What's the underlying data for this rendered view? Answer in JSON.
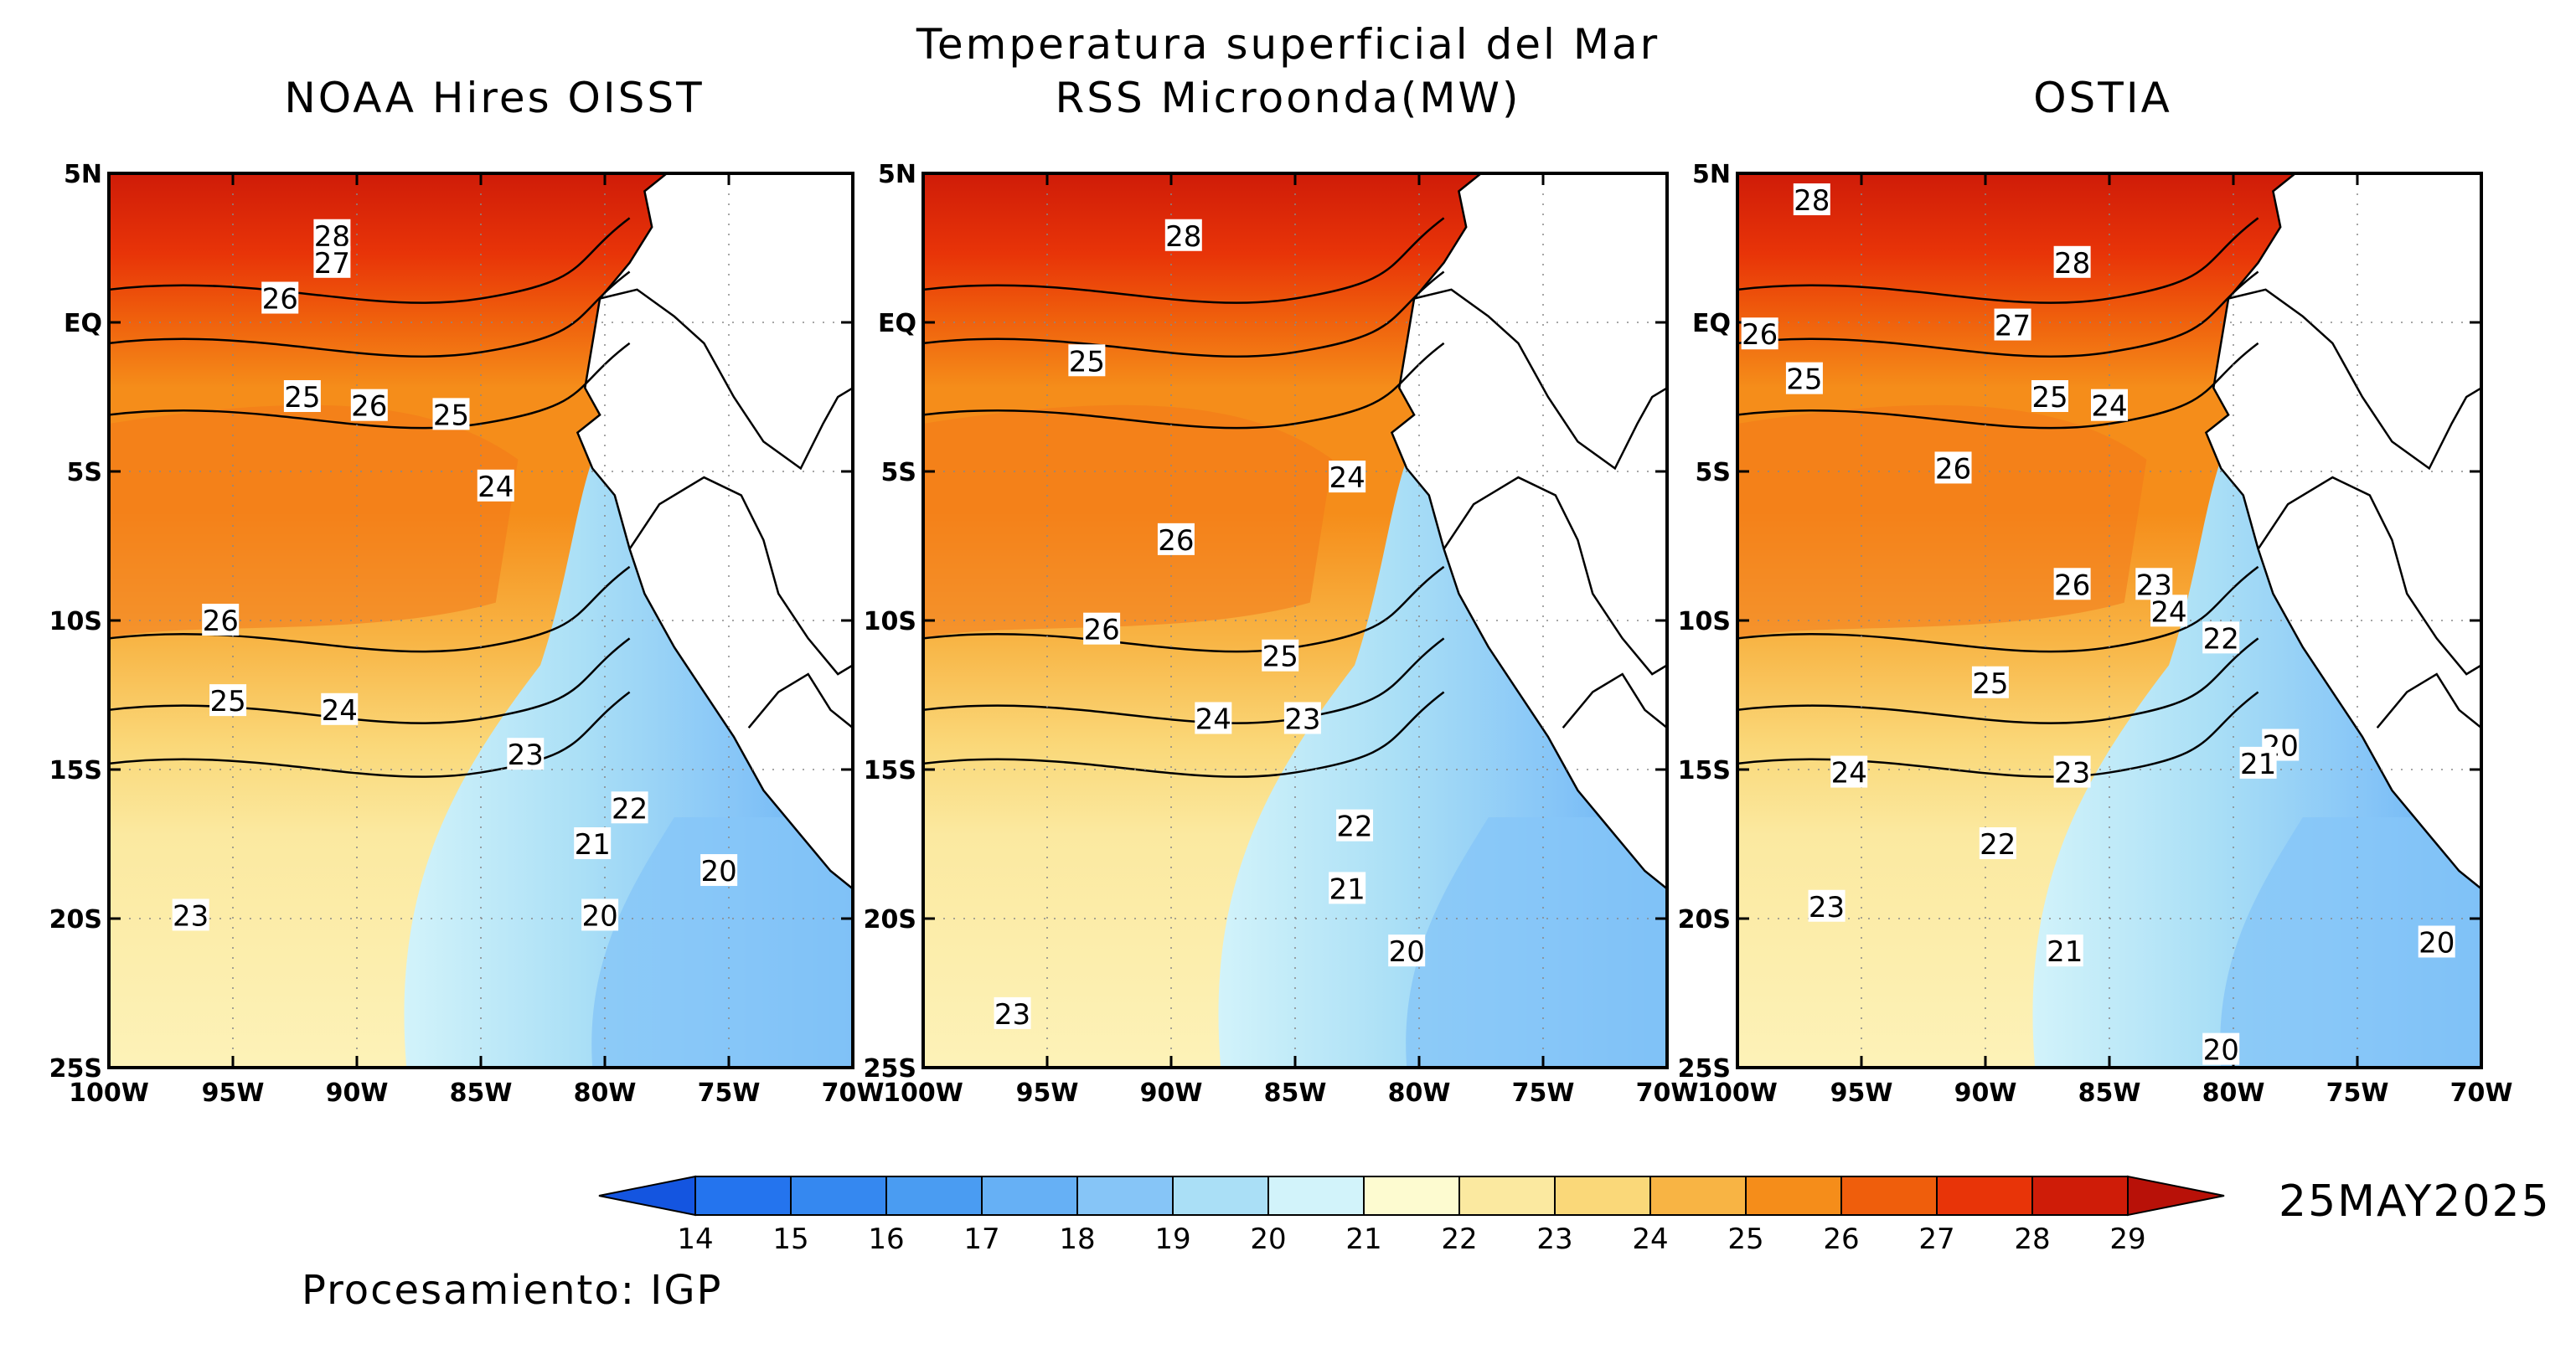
{
  "title": {
    "main": "Temperatura superficial del Mar",
    "panel_noaa": "NOAA Hires OISST",
    "panel_rss": "RSS Microonda(MW)",
    "panel_ostia": "OSTIA"
  },
  "date": "25MAY2025",
  "credit": "Procesamiento: IGP",
  "axes": {
    "lat_labels": [
      "5N",
      "EQ",
      "5S",
      "10S",
      "15S",
      "20S",
      "25S"
    ],
    "lon_labels": [
      "100W",
      "95W",
      "90W",
      "85W",
      "80W",
      "75W",
      "70W"
    ]
  },
  "colorbar": {
    "labels": [
      "14",
      "15",
      "16",
      "17",
      "18",
      "19",
      "20",
      "21",
      "22",
      "23",
      "24",
      "25",
      "26",
      "27",
      "28",
      "29"
    ],
    "colors": [
      "#1b5ee8",
      "#2474ee",
      "#3588f0",
      "#4a9cf2",
      "#66b0f5",
      "#86c5f7",
      "#aadff6",
      "#d2f3fa",
      "#fdfbd0",
      "#fbe9a0",
      "#fad879",
      "#f8b444",
      "#f58d1a",
      "#ef5e0c",
      "#e83408",
      "#cf1c08"
    ],
    "under_color": "#1455e0",
    "over_color": "#b81108"
  },
  "panels": [
    {
      "name": "NOAA Hires OISST",
      "contour_labels": [
        "28",
        "27",
        "26",
        "25",
        "26",
        "25",
        "24",
        "26",
        "25",
        "24",
        "23",
        "22",
        "21",
        "20",
        "20",
        "23"
      ]
    },
    {
      "name": "RSS Microonda(MW)",
      "contour_labels": [
        "28",
        "25",
        "24",
        "26",
        "26",
        "25",
        "24",
        "23",
        "22",
        "21",
        "20",
        "23"
      ]
    },
    {
      "name": "OSTIA",
      "contour_labels": [
        "28",
        "28",
        "26",
        "27",
        "25",
        "25",
        "24",
        "26",
        "26",
        "23",
        "24",
        "22",
        "25",
        "24",
        "23",
        "20",
        "21",
        "22",
        "23",
        "21",
        "20",
        "20"
      ]
    }
  ]
}
